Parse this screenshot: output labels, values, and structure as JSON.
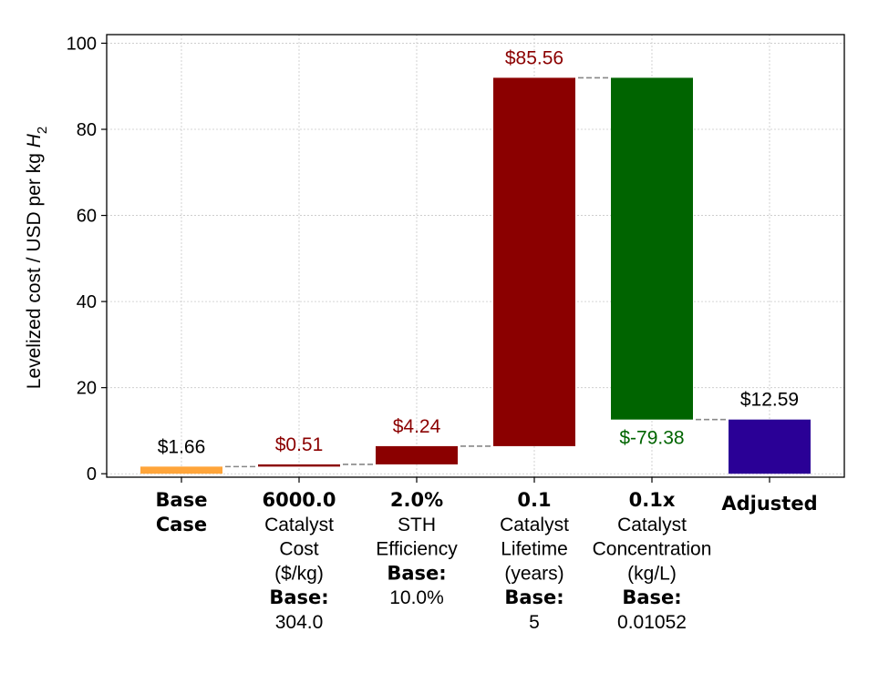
{
  "chart_data": {
    "type": "waterfall",
    "ylabel": "Levelized cost / USD per kg H₂",
    "ylabel_parts": {
      "main": "Levelized cost / USD per kg ",
      "italic": "H",
      "sub": "2"
    },
    "ylim": [
      0,
      100
    ],
    "yticks": [
      0,
      20,
      40,
      60,
      80,
      100
    ],
    "grid": true,
    "bars": [
      {
        "label_lines": [
          {
            "text": "Base",
            "bold": true
          },
          {
            "text": "Case",
            "bold": true
          }
        ],
        "kind": "total",
        "start": 0,
        "value": 1.66,
        "annotation": "$1.66",
        "annotation_color": "#000000",
        "annotation_position": "above",
        "color": "#FFA53A"
      },
      {
        "label_lines": [
          {
            "text": "6000.0",
            "bold": true
          },
          {
            "text": "Catalyst",
            "bold": false
          },
          {
            "text": "Cost",
            "bold": false
          },
          {
            "text": "($/kg)",
            "bold": false
          },
          {
            "text": "Base:",
            "bold": true
          },
          {
            "text": "304.0",
            "bold": false
          }
        ],
        "kind": "delta",
        "start": 1.66,
        "value": 0.51,
        "annotation": "$0.51",
        "annotation_color": "#8B0000",
        "annotation_position": "above",
        "color": "#8B0000"
      },
      {
        "label_lines": [
          {
            "text": "2.0%",
            "bold": true
          },
          {
            "text": "STH",
            "bold": false
          },
          {
            "text": "Efficiency",
            "bold": false
          },
          {
            "text": "Base:",
            "bold": true
          },
          {
            "text": "10.0%",
            "bold": false
          }
        ],
        "kind": "delta",
        "start": 2.17,
        "value": 4.24,
        "annotation": "$4.24",
        "annotation_color": "#8B0000",
        "annotation_position": "above",
        "color": "#8B0000"
      },
      {
        "label_lines": [
          {
            "text": "0.1",
            "bold": true
          },
          {
            "text": "Catalyst",
            "bold": false
          },
          {
            "text": "Lifetime",
            "bold": false
          },
          {
            "text": "(years)",
            "bold": false
          },
          {
            "text": "Base:",
            "bold": true
          },
          {
            "text": "5",
            "bold": false
          }
        ],
        "kind": "delta",
        "start": 6.41,
        "value": 85.56,
        "annotation": "$85.56",
        "annotation_color": "#8B0000",
        "annotation_position": "above",
        "color": "#8B0000"
      },
      {
        "label_lines": [
          {
            "text": "0.1x",
            "bold": true
          },
          {
            "text": "Catalyst",
            "bold": false
          },
          {
            "text": "Concentration",
            "bold": false
          },
          {
            "text": "(kg/L)",
            "bold": false
          },
          {
            "text": "Base:",
            "bold": true
          },
          {
            "text": "0.01052",
            "bold": false
          }
        ],
        "kind": "delta",
        "start": 91.97,
        "value": -79.38,
        "annotation": "$-79.38",
        "annotation_color": "#006400",
        "annotation_position": "below",
        "color": "#006400"
      },
      {
        "label_lines": [
          {
            "text": "Adjusted",
            "bold": true
          }
        ],
        "kind": "total",
        "start": 0,
        "value": 12.59,
        "annotation": "$12.59",
        "annotation_color": "#000000",
        "annotation_position": "above",
        "color": "#2A0096"
      }
    ]
  }
}
